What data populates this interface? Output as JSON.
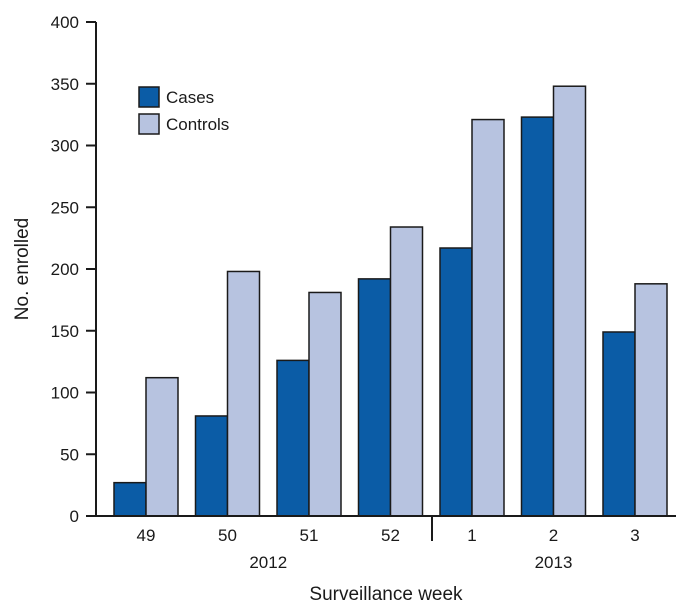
{
  "chart_data": {
    "type": "bar",
    "categories": [
      "49",
      "50",
      "51",
      "52",
      "1",
      "2",
      "3"
    ],
    "year_groups": [
      {
        "label": "2012",
        "categories": [
          "49",
          "50",
          "51",
          "52"
        ]
      },
      {
        "label": "2013",
        "categories": [
          "1",
          "2",
          "3"
        ]
      }
    ],
    "series": [
      {
        "name": "Cases",
        "color": "#0b5ca6",
        "values": [
          27,
          81,
          126,
          192,
          217,
          323,
          149
        ]
      },
      {
        "name": "Controls",
        "color": "#b7c3e0",
        "values": [
          112,
          198,
          181,
          234,
          321,
          348,
          188
        ]
      }
    ],
    "xlabel": "Surveillance week",
    "ylabel": "No. enrolled",
    "ylim": [
      0,
      400
    ],
    "yticks": [
      0,
      50,
      100,
      150,
      200,
      250,
      300,
      350,
      400
    ],
    "legend_position": "top-left",
    "grid": false
  }
}
